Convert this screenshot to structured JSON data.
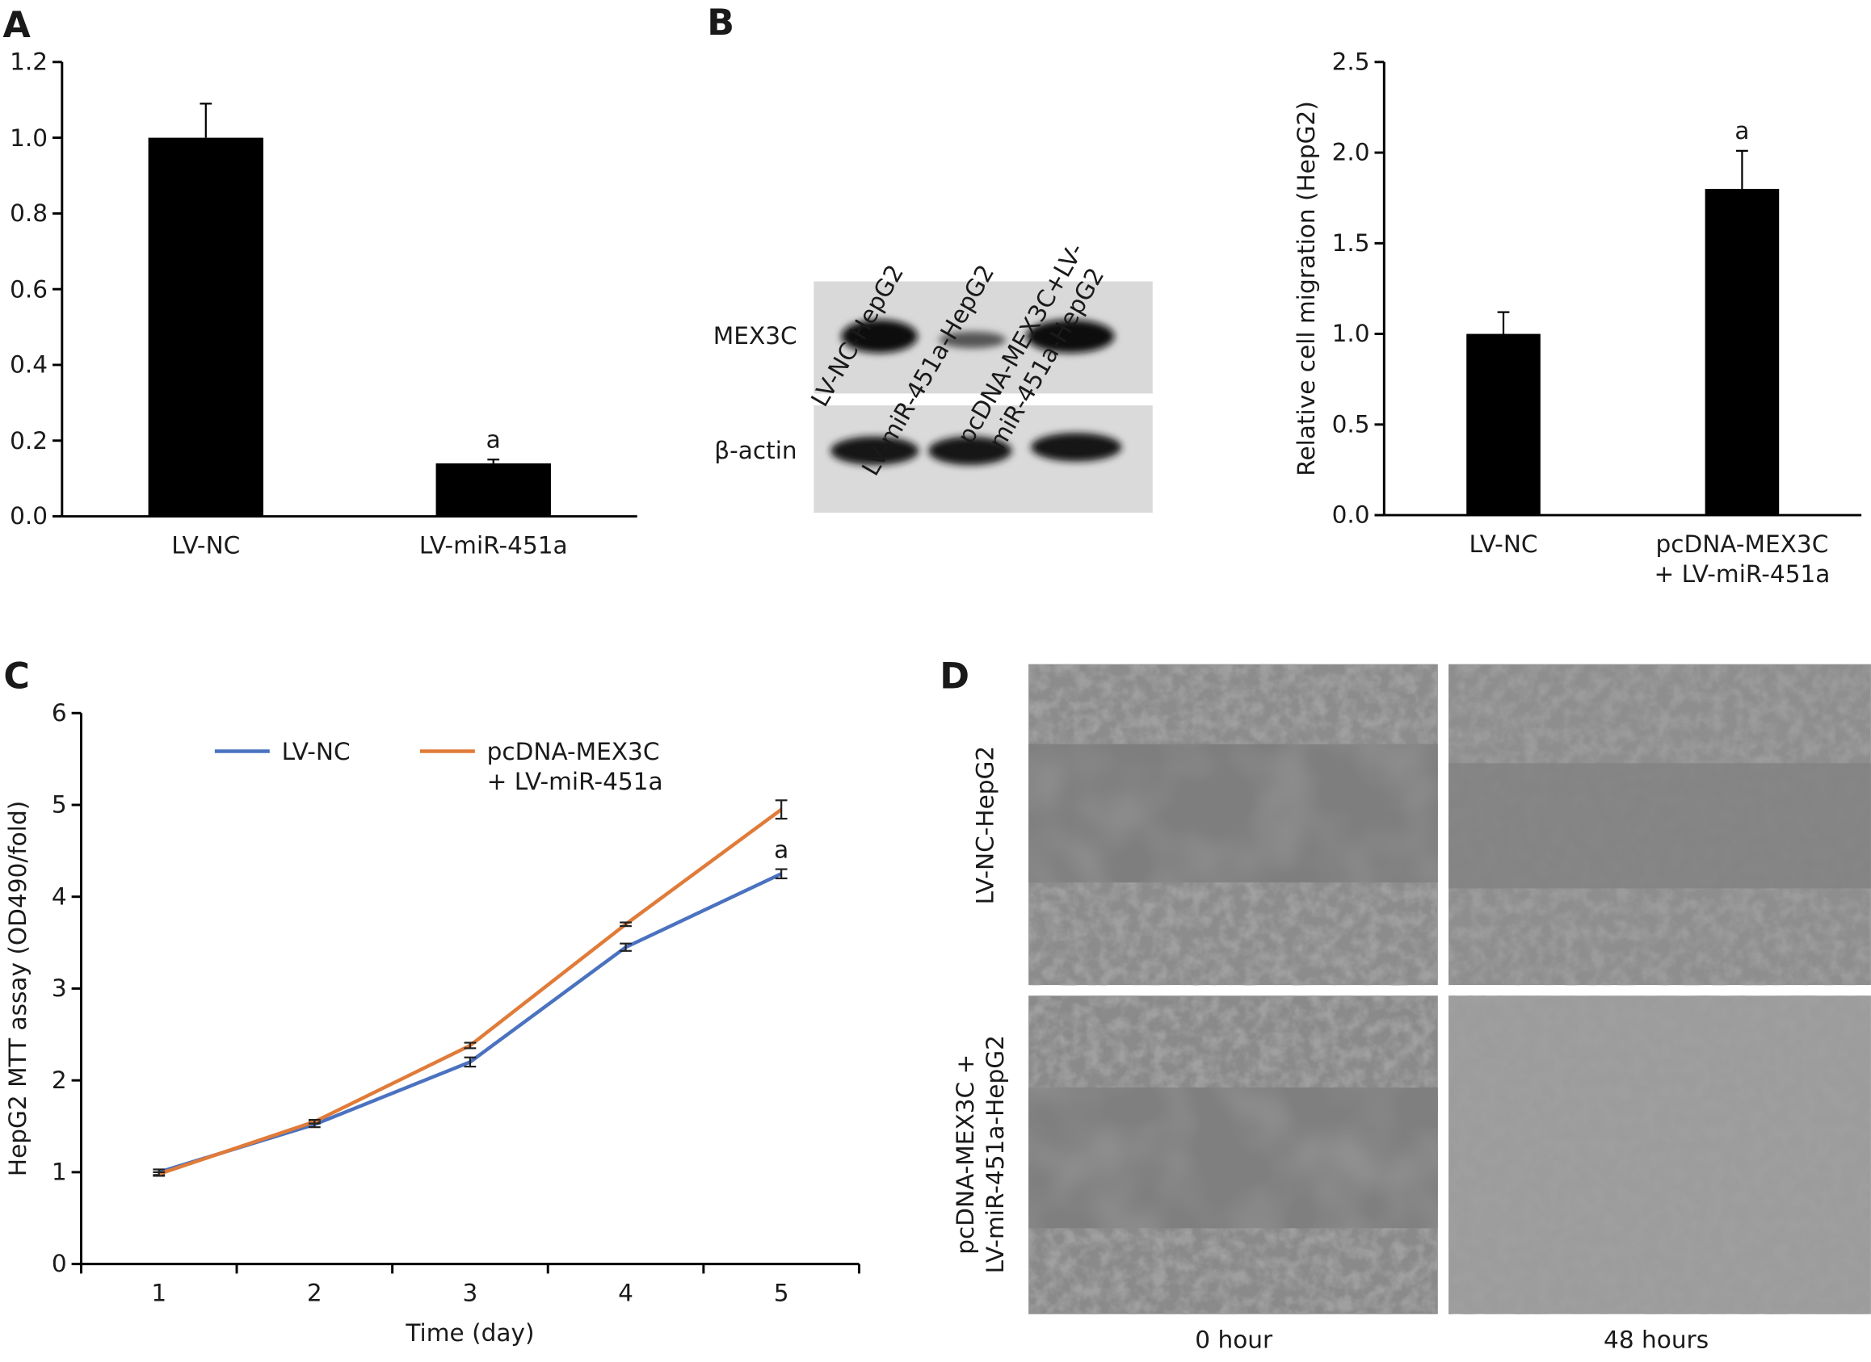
{
  "panels": [
    "A",
    "B",
    "C",
    "D"
  ],
  "blot": {
    "lanes": [
      "LV-NC-HepG2",
      "LV-miR-451a-HepG2",
      "pcDNA-MEX3C+LV-\nmiR-451a-HepG2"
    ],
    "rows": [
      "MEX3C",
      "β-actin"
    ]
  },
  "micrographs": {
    "rows": [
      "LV-NC-HepG2",
      "pcDNA-MEX3C +\nLV-miR-451a-HepG2"
    ],
    "columns": [
      "0 hour",
      "48 hours"
    ]
  },
  "chart_data": [
    {
      "type": "bar",
      "categories": [
        "LV-NC",
        "LV-miR-451a"
      ],
      "values": [
        1.0,
        0.14
      ],
      "errors": [
        0.09,
        0.01
      ],
      "annotations": [
        null,
        "a"
      ],
      "color": "#000000",
      "ylim": [
        0,
        1.2
      ],
      "yticks": [
        {
          "value": 0,
          "label": "0.0"
        },
        0.2,
        0.4,
        0.6,
        0.8,
        {
          "value": 1,
          "label": "1.0"
        },
        1.2
      ]
    },
    {
      "type": "bar",
      "ylabel": "Relative cell migration (HepG2)",
      "categories": [
        "LV-NC",
        "pcDNA-MEX3C\n+ LV-miR-451a"
      ],
      "values": [
        1.0,
        1.8
      ],
      "errors": [
        0.12,
        0.21
      ],
      "annotations": [
        null,
        "a"
      ],
      "color": "#000000",
      "ylim": [
        0,
        2.5
      ],
      "yticks": [
        {
          "value": 0,
          "label": "0.0"
        },
        0.5,
        {
          "value": 1,
          "label": "1.0"
        },
        1.5,
        {
          "value": 2,
          "label": "2.0"
        },
        2.5
      ]
    },
    {
      "type": "line",
      "xlabel": "Time (day)",
      "ylabel": "HepG2 MTT assay (OD490/fold)",
      "categories": [
        "1",
        "2",
        "3",
        "4",
        "5"
      ],
      "series": [
        {
          "name": "LV-NC",
          "color": "#4a72c0",
          "values": [
            1.0,
            1.52,
            2.2,
            3.45,
            4.25
          ],
          "errors": [
            0.03,
            0.03,
            0.05,
            0.04,
            0.05
          ]
        },
        {
          "name": "pcDNA-MEX3C\n+ LV-miR-451a",
          "color": "#e07b39",
          "values": [
            0.98,
            1.55,
            2.38,
            3.7,
            4.95
          ],
          "errors": [
            0.02,
            0.02,
            0.03,
            0.02,
            0.1
          ]
        }
      ],
      "annotations": [
        null,
        null,
        null,
        null,
        "a"
      ],
      "legend": "top-left",
      "ylim": [
        0,
        6
      ],
      "yticks": [
        0,
        1,
        2,
        3,
        4,
        5,
        6
      ]
    }
  ]
}
